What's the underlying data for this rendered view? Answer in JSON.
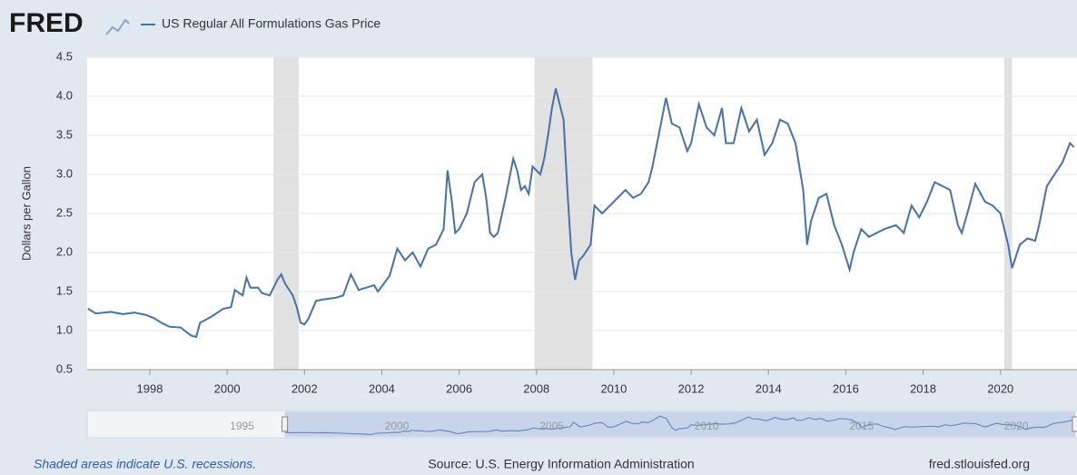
{
  "chart_data": {
    "type": "line",
    "logo": "FRED",
    "y_label": "Dollars per Gallon",
    "footer_left": "Shaded areas indicate U.S. recessions.",
    "footer_center": "Source: U.S. Energy Information Administration",
    "footer_right": "fred.stlouisfed.org",
    "xlim": [
      1996.38,
      2021.98
    ],
    "ylim": [
      0.5,
      4.5
    ],
    "xticks": [
      1998,
      2000,
      2002,
      2004,
      2006,
      2008,
      2010,
      2012,
      2014,
      2016,
      2018,
      2020
    ],
    "yticks": [
      0.5,
      {
        "value": 1,
        "label": "1.0"
      },
      1.5,
      {
        "value": 2,
        "label": "2.0"
      },
      2.5,
      {
        "value": 3,
        "label": "3.0"
      },
      3.5,
      {
        "value": 4,
        "label": "4.0"
      },
      4.5
    ],
    "grid": true,
    "recessions": [
      [
        2001.2,
        2001.85
      ],
      [
        2007.95,
        2009.45
      ],
      [
        2020.1,
        2020.3
      ]
    ],
    "nav_xlim": [
      1990,
      2021.9
    ],
    "nav_xticks": [
      1995,
      2000,
      2005,
      2010,
      2015,
      2020
    ],
    "x": [
      1996.4,
      1996.6,
      1997.0,
      1997.3,
      1997.6,
      1997.9,
      1998.1,
      1998.3,
      1998.5,
      1998.8,
      1999.0,
      1999.1,
      1999.2,
      1999.3,
      1999.6,
      1999.9,
      2000.1,
      2000.2,
      2000.4,
      2000.5,
      2000.6,
      2000.8,
      2000.9,
      2001.1,
      2001.3,
      2001.4,
      2001.5,
      2001.7,
      2001.8,
      2001.9,
      2002.0,
      2002.1,
      2002.3,
      2002.5,
      2002.8,
      2003.0,
      2003.2,
      2003.4,
      2003.6,
      2003.8,
      2003.9,
      2004.2,
      2004.4,
      2004.6,
      2004.8,
      2005.0,
      2005.2,
      2005.4,
      2005.6,
      2005.7,
      2005.8,
      2005.9,
      2006.0,
      2006.2,
      2006.4,
      2006.6,
      2006.7,
      2006.8,
      2006.9,
      2007.0,
      2007.2,
      2007.4,
      2007.5,
      2007.6,
      2007.7,
      2007.8,
      2007.9,
      2008.1,
      2008.2,
      2008.3,
      2008.4,
      2008.5,
      2008.6,
      2008.7,
      2008.8,
      2008.9,
      2009.0,
      2009.1,
      2009.2,
      2009.4,
      2009.5,
      2009.7,
      2009.9,
      2010.1,
      2010.3,
      2010.5,
      2010.7,
      2010.9,
      2011.0,
      2011.2,
      2011.35,
      2011.5,
      2011.7,
      2011.9,
      2012.0,
      2012.2,
      2012.4,
      2012.6,
      2012.8,
      2012.9,
      2013.1,
      2013.3,
      2013.5,
      2013.7,
      2013.9,
      2014.1,
      2014.3,
      2014.5,
      2014.7,
      2014.9,
      2015.0,
      2015.1,
      2015.3,
      2015.5,
      2015.7,
      2015.9,
      2016.1,
      2016.2,
      2016.4,
      2016.6,
      2016.8,
      2017.0,
      2017.3,
      2017.5,
      2017.7,
      2017.9,
      2018.1,
      2018.3,
      2018.5,
      2018.7,
      2018.9,
      2019.0,
      2019.2,
      2019.35,
      2019.6,
      2019.8,
      2020.0,
      2020.2,
      2020.3,
      2020.5,
      2020.7,
      2020.9,
      2021.0,
      2021.2,
      2021.4,
      2021.6,
      2021.8,
      2021.9
    ],
    "series": [
      {
        "name": "US Regular All Formulations Gas Price",
        "color": "#4572a7",
        "values": [
          1.28,
          1.22,
          1.24,
          1.21,
          1.23,
          1.2,
          1.16,
          1.1,
          1.05,
          1.04,
          0.96,
          0.93,
          0.92,
          1.1,
          1.18,
          1.28,
          1.3,
          1.52,
          1.45,
          1.68,
          1.55,
          1.55,
          1.48,
          1.45,
          1.65,
          1.72,
          1.6,
          1.45,
          1.3,
          1.1,
          1.08,
          1.15,
          1.38,
          1.4,
          1.42,
          1.45,
          1.72,
          1.52,
          1.55,
          1.58,
          1.5,
          1.7,
          2.05,
          1.9,
          2.0,
          1.82,
          2.05,
          2.1,
          2.3,
          3.05,
          2.7,
          2.25,
          2.3,
          2.5,
          2.9,
          3.0,
          2.7,
          2.25,
          2.2,
          2.25,
          2.7,
          3.2,
          3.05,
          2.8,
          2.85,
          2.75,
          3.1,
          3.0,
          3.2,
          3.5,
          3.85,
          4.1,
          3.9,
          3.7,
          2.8,
          2.0,
          1.65,
          1.9,
          1.95,
          2.1,
          2.6,
          2.5,
          2.6,
          2.7,
          2.8,
          2.7,
          2.75,
          2.9,
          3.1,
          3.6,
          3.98,
          3.65,
          3.6,
          3.3,
          3.4,
          3.9,
          3.6,
          3.5,
          3.85,
          3.4,
          3.4,
          3.85,
          3.55,
          3.7,
          3.25,
          3.4,
          3.7,
          3.65,
          3.4,
          2.8,
          2.1,
          2.4,
          2.7,
          2.75,
          2.35,
          2.1,
          1.78,
          2.0,
          2.3,
          2.2,
          2.25,
          2.3,
          2.35,
          2.25,
          2.6,
          2.45,
          2.65,
          2.9,
          2.85,
          2.8,
          2.35,
          2.25,
          2.6,
          2.88,
          2.65,
          2.6,
          2.5,
          2.1,
          1.8,
          2.1,
          2.18,
          2.15,
          2.35,
          2.85,
          3.0,
          3.15,
          3.4,
          3.35
        ]
      }
    ]
  }
}
